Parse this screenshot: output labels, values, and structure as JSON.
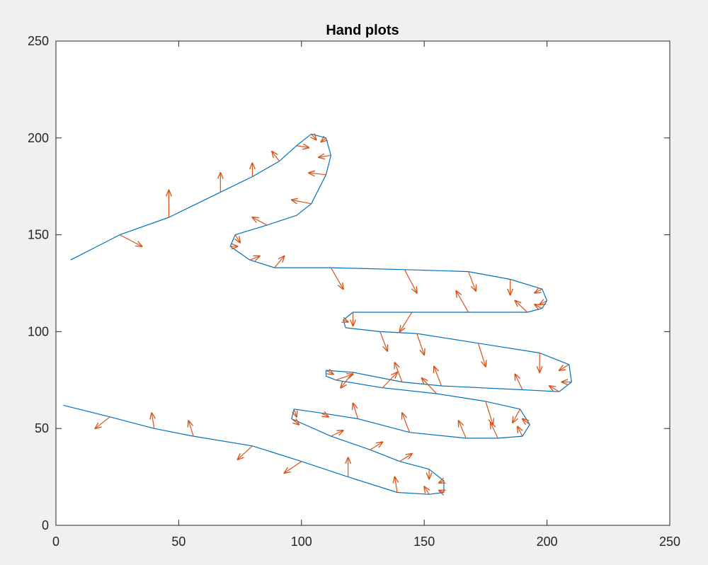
{
  "window": {
    "background": "#f0f0f0"
  },
  "chart_data": {
    "type": "line",
    "title": "Hand plots",
    "xlabel": "",
    "ylabel": "",
    "xlim": [
      0,
      250
    ],
    "ylim": [
      0,
      250
    ],
    "xticks": [
      0,
      50,
      100,
      150,
      200,
      250
    ],
    "yticks": [
      0,
      50,
      100,
      150,
      200,
      250
    ],
    "xtick_labels": [
      "0",
      "50",
      "100",
      "150",
      "200",
      "250"
    ],
    "ytick_labels": [
      "0",
      "50",
      "100",
      "150",
      "200",
      "250"
    ],
    "grid": false,
    "legend": "none",
    "series": [
      {
        "kind": "line",
        "color": "#0072bd",
        "points": [
          [
            6,
            137
          ],
          [
            26,
            150
          ],
          [
            46,
            159
          ],
          [
            67,
            172
          ],
          [
            80,
            180
          ],
          [
            91,
            188
          ],
          [
            98,
            196
          ],
          [
            104,
            202
          ],
          [
            110,
            200
          ],
          [
            112,
            191
          ],
          [
            110,
            181
          ],
          [
            104,
            166
          ],
          [
            98,
            160
          ],
          [
            86,
            155
          ],
          [
            73,
            150
          ],
          [
            71,
            144
          ],
          [
            79,
            137
          ],
          [
            89,
            133
          ],
          [
            112,
            133
          ],
          [
            142,
            132
          ],
          [
            168,
            131
          ],
          [
            185,
            127
          ],
          [
            198,
            122
          ],
          [
            200,
            116
          ],
          [
            198,
            112
          ],
          [
            192,
            110
          ],
          [
            168,
            110
          ],
          [
            145,
            110
          ],
          [
            121,
            110
          ],
          [
            117,
            106
          ],
          [
            118,
            102
          ],
          [
            132,
            100
          ],
          [
            147,
            99
          ],
          [
            172,
            94
          ],
          [
            197,
            89
          ],
          [
            209,
            83
          ],
          [
            210,
            74
          ],
          [
            205,
            69
          ],
          [
            190,
            70
          ],
          [
            157,
            72
          ],
          [
            141,
            74
          ],
          [
            121,
            79
          ],
          [
            110,
            80
          ],
          [
            110,
            77
          ],
          [
            114,
            75
          ],
          [
            133,
            71
          ],
          [
            155,
            68
          ],
          [
            175,
            64
          ],
          [
            189,
            60
          ],
          [
            193,
            52
          ],
          [
            190,
            46
          ],
          [
            180,
            45
          ],
          [
            167,
            45
          ],
          [
            144,
            48
          ],
          [
            123,
            55
          ],
          [
            108,
            58
          ],
          [
            97,
            60
          ],
          [
            96,
            55
          ],
          [
            112,
            46
          ],
          [
            128,
            39
          ],
          [
            140,
            33
          ],
          [
            152,
            29
          ],
          [
            158,
            23
          ],
          [
            158,
            17
          ],
          [
            152,
            16
          ],
          [
            139,
            17
          ],
          [
            119,
            25
          ],
          [
            100,
            33
          ],
          [
            80,
            41
          ],
          [
            56,
            46
          ],
          [
            40,
            50
          ],
          [
            22,
            56
          ],
          [
            3,
            62
          ]
        ]
      },
      {
        "kind": "quiver",
        "color": "#d95319",
        "arrows": [
          [
            26,
            150,
            9,
            -6
          ],
          [
            46,
            159,
            0,
            14
          ],
          [
            67,
            172,
            0,
            10
          ],
          [
            80,
            180,
            0,
            7
          ],
          [
            91,
            188,
            -3,
            5
          ],
          [
            98,
            196,
            5,
            -1
          ],
          [
            104,
            202,
            2,
            -3
          ],
          [
            110,
            200,
            -2,
            -2
          ],
          [
            112,
            191,
            -5,
            -1
          ],
          [
            110,
            181,
            -7,
            1
          ],
          [
            104,
            166,
            -8,
            2
          ],
          [
            98,
            160,
            0,
            0
          ],
          [
            86,
            155,
            -6,
            4
          ],
          [
            73,
            150,
            2,
            -4
          ],
          [
            71,
            144,
            3,
            0
          ],
          [
            79,
            137,
            4,
            2
          ],
          [
            89,
            133,
            4,
            6
          ],
          [
            112,
            133,
            5,
            -11
          ],
          [
            142,
            132,
            5,
            -12
          ],
          [
            168,
            131,
            3,
            -10
          ],
          [
            185,
            127,
            0,
            -8
          ],
          [
            198,
            122,
            -3,
            -2
          ],
          [
            200,
            116,
            -3,
            -2
          ],
          [
            198,
            112,
            -3,
            2
          ],
          [
            192,
            110,
            -5,
            6
          ],
          [
            168,
            110,
            -5,
            11
          ],
          [
            145,
            110,
            -5,
            -10
          ],
          [
            121,
            110,
            0,
            -7
          ],
          [
            117,
            106,
            2,
            -1
          ],
          [
            118,
            102,
            0,
            0
          ],
          [
            132,
            100,
            3,
            -10
          ],
          [
            147,
            99,
            3,
            -11
          ],
          [
            172,
            94,
            3,
            -12
          ],
          [
            197,
            89,
            0,
            -10
          ],
          [
            209,
            83,
            -4,
            -3
          ],
          [
            210,
            74,
            -4,
            0
          ],
          [
            205,
            69,
            -4,
            3
          ],
          [
            190,
            70,
            -3,
            8
          ],
          [
            157,
            72,
            -3,
            10
          ],
          [
            141,
            74,
            -3,
            10
          ],
          [
            121,
            79,
            -5,
            -8
          ],
          [
            110,
            80,
            3,
            -2
          ],
          [
            110,
            77,
            0,
            0
          ],
          [
            114,
            75,
            7,
            3
          ],
          [
            133,
            71,
            6,
            8
          ],
          [
            155,
            68,
            -6,
            8
          ],
          [
            175,
            64,
            3,
            -12
          ],
          [
            189,
            60,
            -3,
            -7
          ],
          [
            193,
            52,
            -3,
            3
          ],
          [
            190,
            46,
            -2,
            5
          ],
          [
            180,
            45,
            -3,
            8
          ],
          [
            167,
            45,
            -3,
            9
          ],
          [
            144,
            48,
            -3,
            10
          ],
          [
            123,
            55,
            -2,
            8
          ],
          [
            108,
            58,
            3,
            -2
          ],
          [
            97,
            60,
            1,
            -4
          ],
          [
            96,
            55,
            3,
            -3
          ],
          [
            112,
            46,
            5,
            3
          ],
          [
            128,
            39,
            5,
            4
          ],
          [
            140,
            33,
            5,
            4
          ],
          [
            152,
            29,
            0,
            -5
          ],
          [
            158,
            23,
            -2,
            -1
          ],
          [
            158,
            17,
            -2,
            1
          ],
          [
            152,
            16,
            -2,
            4
          ],
          [
            139,
            17,
            -1,
            8
          ],
          [
            119,
            25,
            0,
            10
          ],
          [
            100,
            33,
            -7,
            -6
          ],
          [
            80,
            41,
            -6,
            -7
          ],
          [
            56,
            46,
            -2,
            8
          ],
          [
            40,
            50,
            -1,
            8
          ],
          [
            22,
            56,
            -6,
            -6
          ]
        ]
      }
    ]
  }
}
